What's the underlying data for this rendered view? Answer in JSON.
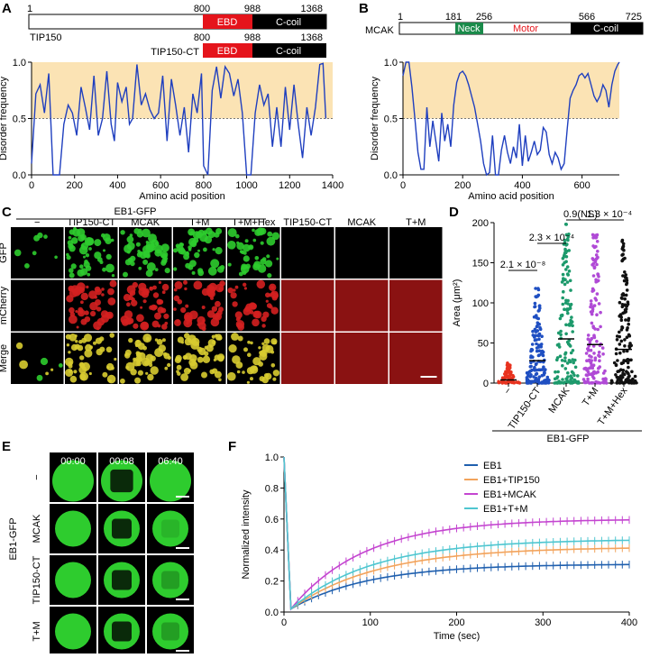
{
  "panels": {
    "A": {
      "letter": "A",
      "protein_label": "TIP150",
      "construct_label": "TIP150-CT",
      "numbers": {
        "start": "1",
        "ebd_start": "800",
        "ebd_end": "988",
        "end": "1368"
      },
      "ct_numbers": {
        "ebd_start": "800",
        "ebd_end": "988",
        "end": "1368"
      },
      "domains": {
        "ebd": "EBD",
        "ccoil": "C-coil"
      }
    },
    "B": {
      "letter": "B",
      "protein_label": "MCAK",
      "numbers": {
        "start": "1",
        "neck_start": "181",
        "neck_end": "256",
        "motor_end": "566",
        "end": "725"
      },
      "domains": {
        "neck": "Neck",
        "motor": "Motor",
        "ccoil": "C-coil"
      }
    },
    "C": {
      "letter": "C",
      "group_label": "EB1-GFP",
      "columns": [
        "−",
        "TIP150-CT",
        "MCAK",
        "T+M",
        "T+M+Hex",
        "TIP150-CT",
        "MCAK",
        "T+M"
      ],
      "rows": [
        "GFP",
        "mCherry",
        "Merge"
      ]
    },
    "D": {
      "letter": "D",
      "group_label": "EB1-GFP"
    },
    "E": {
      "letter": "E",
      "group_label": "EB1-GFP",
      "times": [
        "00:00",
        "00:08",
        "06:40"
      ],
      "rows": [
        "−",
        "MCAK",
        "TIP150-CT",
        "T+M"
      ]
    },
    "F": {
      "letter": "F"
    }
  },
  "colors": {
    "ebd": "#e5141b",
    "neck": "#1a8a4a",
    "motor_text": "#e5141b",
    "disorder_line": "#1f3fbf",
    "shade": "#fbe3b4",
    "gfp": "#2ecc2e",
    "mcherry": "#d42020",
    "merge": "#d8cc30",
    "mcherry_bg": "#8a1212"
  },
  "chart_data": [
    {
      "type": "line",
      "title": "",
      "xlabel": "Amino acid position",
      "ylabel": "Disorder frequency",
      "xlim": [
        0,
        1400
      ],
      "ylim": [
        0,
        1.0
      ],
      "xticks": [
        "0",
        "200",
        "400",
        "600",
        "800",
        "1000",
        "1200",
        "1400"
      ],
      "yticks": [
        "0.0",
        "0.5",
        "1.0"
      ],
      "threshold": 0.5,
      "series": [
        {
          "x": [
            0,
            20,
            40,
            60,
            80,
            100,
            115,
            130,
            150,
            170,
            190,
            210,
            230,
            250,
            270,
            290,
            310,
            330,
            350,
            370,
            385,
            400,
            420,
            440,
            455,
            470,
            490,
            510,
            530,
            550,
            570,
            590,
            610,
            630,
            650,
            670,
            690,
            710,
            730,
            750,
            770,
            790,
            800,
            820,
            840,
            860,
            880,
            900,
            920,
            940,
            960,
            980,
            1000,
            1020,
            1040,
            1060,
            1080,
            1100,
            1120,
            1140,
            1160,
            1180,
            1200,
            1220,
            1240,
            1260,
            1280,
            1300,
            1320,
            1340,
            1355,
            1368
          ],
          "y": [
            0.1,
            0.72,
            0.8,
            0.55,
            0.9,
            0.0,
            0.0,
            0.0,
            0.45,
            0.62,
            0.55,
            0.35,
            0.78,
            0.6,
            0.4,
            0.88,
            0.35,
            0.5,
            0.92,
            0.45,
            0.3,
            0.82,
            0.65,
            0.78,
            0.45,
            0.5,
            0.98,
            0.62,
            0.72,
            0.58,
            0.5,
            0.55,
            0.88,
            0.3,
            0.85,
            0.62,
            0.35,
            0.6,
            0.2,
            0.72,
            0.55,
            0.9,
            0.08,
            0.0,
            0.75,
            0.96,
            0.68,
            0.96,
            0.9,
            0.7,
            0.85,
            0.55,
            0.0,
            0.0,
            0.55,
            0.8,
            0.62,
            0.72,
            0.25,
            0.6,
            0.25,
            0.78,
            0.4,
            0.8,
            0.45,
            0.15,
            0.6,
            0.35,
            0.6,
            0.98,
            0.99,
            0.5
          ]
        }
      ]
    },
    {
      "type": "line",
      "title": "",
      "xlabel": "Amino acid position",
      "ylabel": "Disorder frequency",
      "xlim": [
        0,
        725
      ],
      "ylim": [
        0,
        1.0
      ],
      "xticks": [
        "0",
        "200",
        "400",
        "600"
      ],
      "yticks": [
        "0.0",
        "0.5",
        "1.0"
      ],
      "threshold": 0.5,
      "series": [
        {
          "x": [
            0,
            10,
            20,
            30,
            40,
            50,
            60,
            70,
            80,
            90,
            100,
            110,
            120,
            130,
            140,
            150,
            160,
            170,
            180,
            190,
            200,
            210,
            220,
            230,
            240,
            250,
            260,
            270,
            280,
            290,
            300,
            310,
            320,
            330,
            340,
            350,
            360,
            370,
            380,
            390,
            400,
            410,
            420,
            430,
            440,
            450,
            460,
            470,
            480,
            490,
            500,
            510,
            520,
            530,
            540,
            550,
            560,
            570,
            580,
            590,
            600,
            610,
            620,
            630,
            640,
            650,
            660,
            670,
            680,
            690,
            700,
            710,
            720,
            725
          ],
          "y": [
            0.88,
            1.0,
            1.0,
            0.78,
            0.5,
            0.2,
            0.05,
            0.05,
            0.6,
            0.25,
            0.48,
            0.3,
            0.12,
            0.55,
            0.3,
            0.45,
            0.25,
            0.62,
            0.82,
            0.9,
            0.92,
            0.88,
            0.8,
            0.7,
            0.6,
            0.45,
            0.3,
            0.1,
            0.0,
            0.02,
            0.35,
            0.0,
            0.0,
            0.22,
            0.35,
            0.2,
            0.1,
            0.25,
            0.15,
            0.45,
            0.08,
            0.35,
            0.12,
            0.2,
            0.3,
            0.18,
            0.22,
            0.42,
            0.38,
            0.18,
            0.1,
            0.2,
            0.15,
            0.05,
            0.1,
            0.4,
            0.68,
            0.75,
            0.8,
            0.88,
            0.9,
            0.86,
            0.9,
            0.8,
            0.7,
            0.65,
            0.7,
            0.8,
            0.75,
            0.6,
            0.8,
            0.92,
            0.98,
            1.0
          ]
        }
      ]
    },
    {
      "type": "scatter",
      "title": "",
      "xlabel": "",
      "ylabel": "Area (μm²)",
      "ylim": [
        0,
        200
      ],
      "yticks": [
        "0",
        "50",
        "100",
        "150",
        "200"
      ],
      "categories": [
        "−",
        "TIP150-CT",
        "MCAK",
        "T+M",
        "T+M+Hex"
      ],
      "category_colors": [
        "#e8331f",
        "#1f4fc2",
        "#1d9a6c",
        "#b04ad6",
        "#111111"
      ],
      "medians": [
        4,
        28,
        55,
        48,
        42
      ],
      "maxima": [
        25,
        118,
        198,
        185,
        178
      ],
      "comparisons": [
        {
          "from": 0,
          "to": 1,
          "p": "2.1 × 10⁻⁸"
        },
        {
          "from": 1,
          "to": 2,
          "p": "2.3 × 10⁻⁴"
        },
        {
          "from": 2,
          "to": 3,
          "p": "0.9(NS)"
        },
        {
          "from": 3,
          "to": 4,
          "p": "1.3 × 10⁻⁴"
        }
      ]
    },
    {
      "type": "line",
      "title": "",
      "xlabel": "Time (sec)",
      "ylabel": "Normalized intensity",
      "xlim": [
        0,
        400
      ],
      "ylim": [
        0,
        1.0
      ],
      "xticks": [
        "0",
        "100",
        "200",
        "300",
        "400"
      ],
      "yticks": [
        "0.0",
        "0.2",
        "0.4",
        "0.6",
        "0.8",
        "1.0"
      ],
      "legend": "top-right",
      "series": [
        {
          "name": "EB1",
          "color": "#1f5fae",
          "plateau": 0.31,
          "tau": 90
        },
        {
          "name": "EB1+TIP150",
          "color": "#f2a35c",
          "plateau": 0.42,
          "tau": 100
        },
        {
          "name": "EB1+MCAK",
          "color": "#c445d0",
          "plateau": 0.6,
          "tau": 85
        },
        {
          "name": "EB1+T+M",
          "color": "#4fc6d0",
          "plateau": 0.47,
          "tau": 95
        }
      ]
    }
  ]
}
